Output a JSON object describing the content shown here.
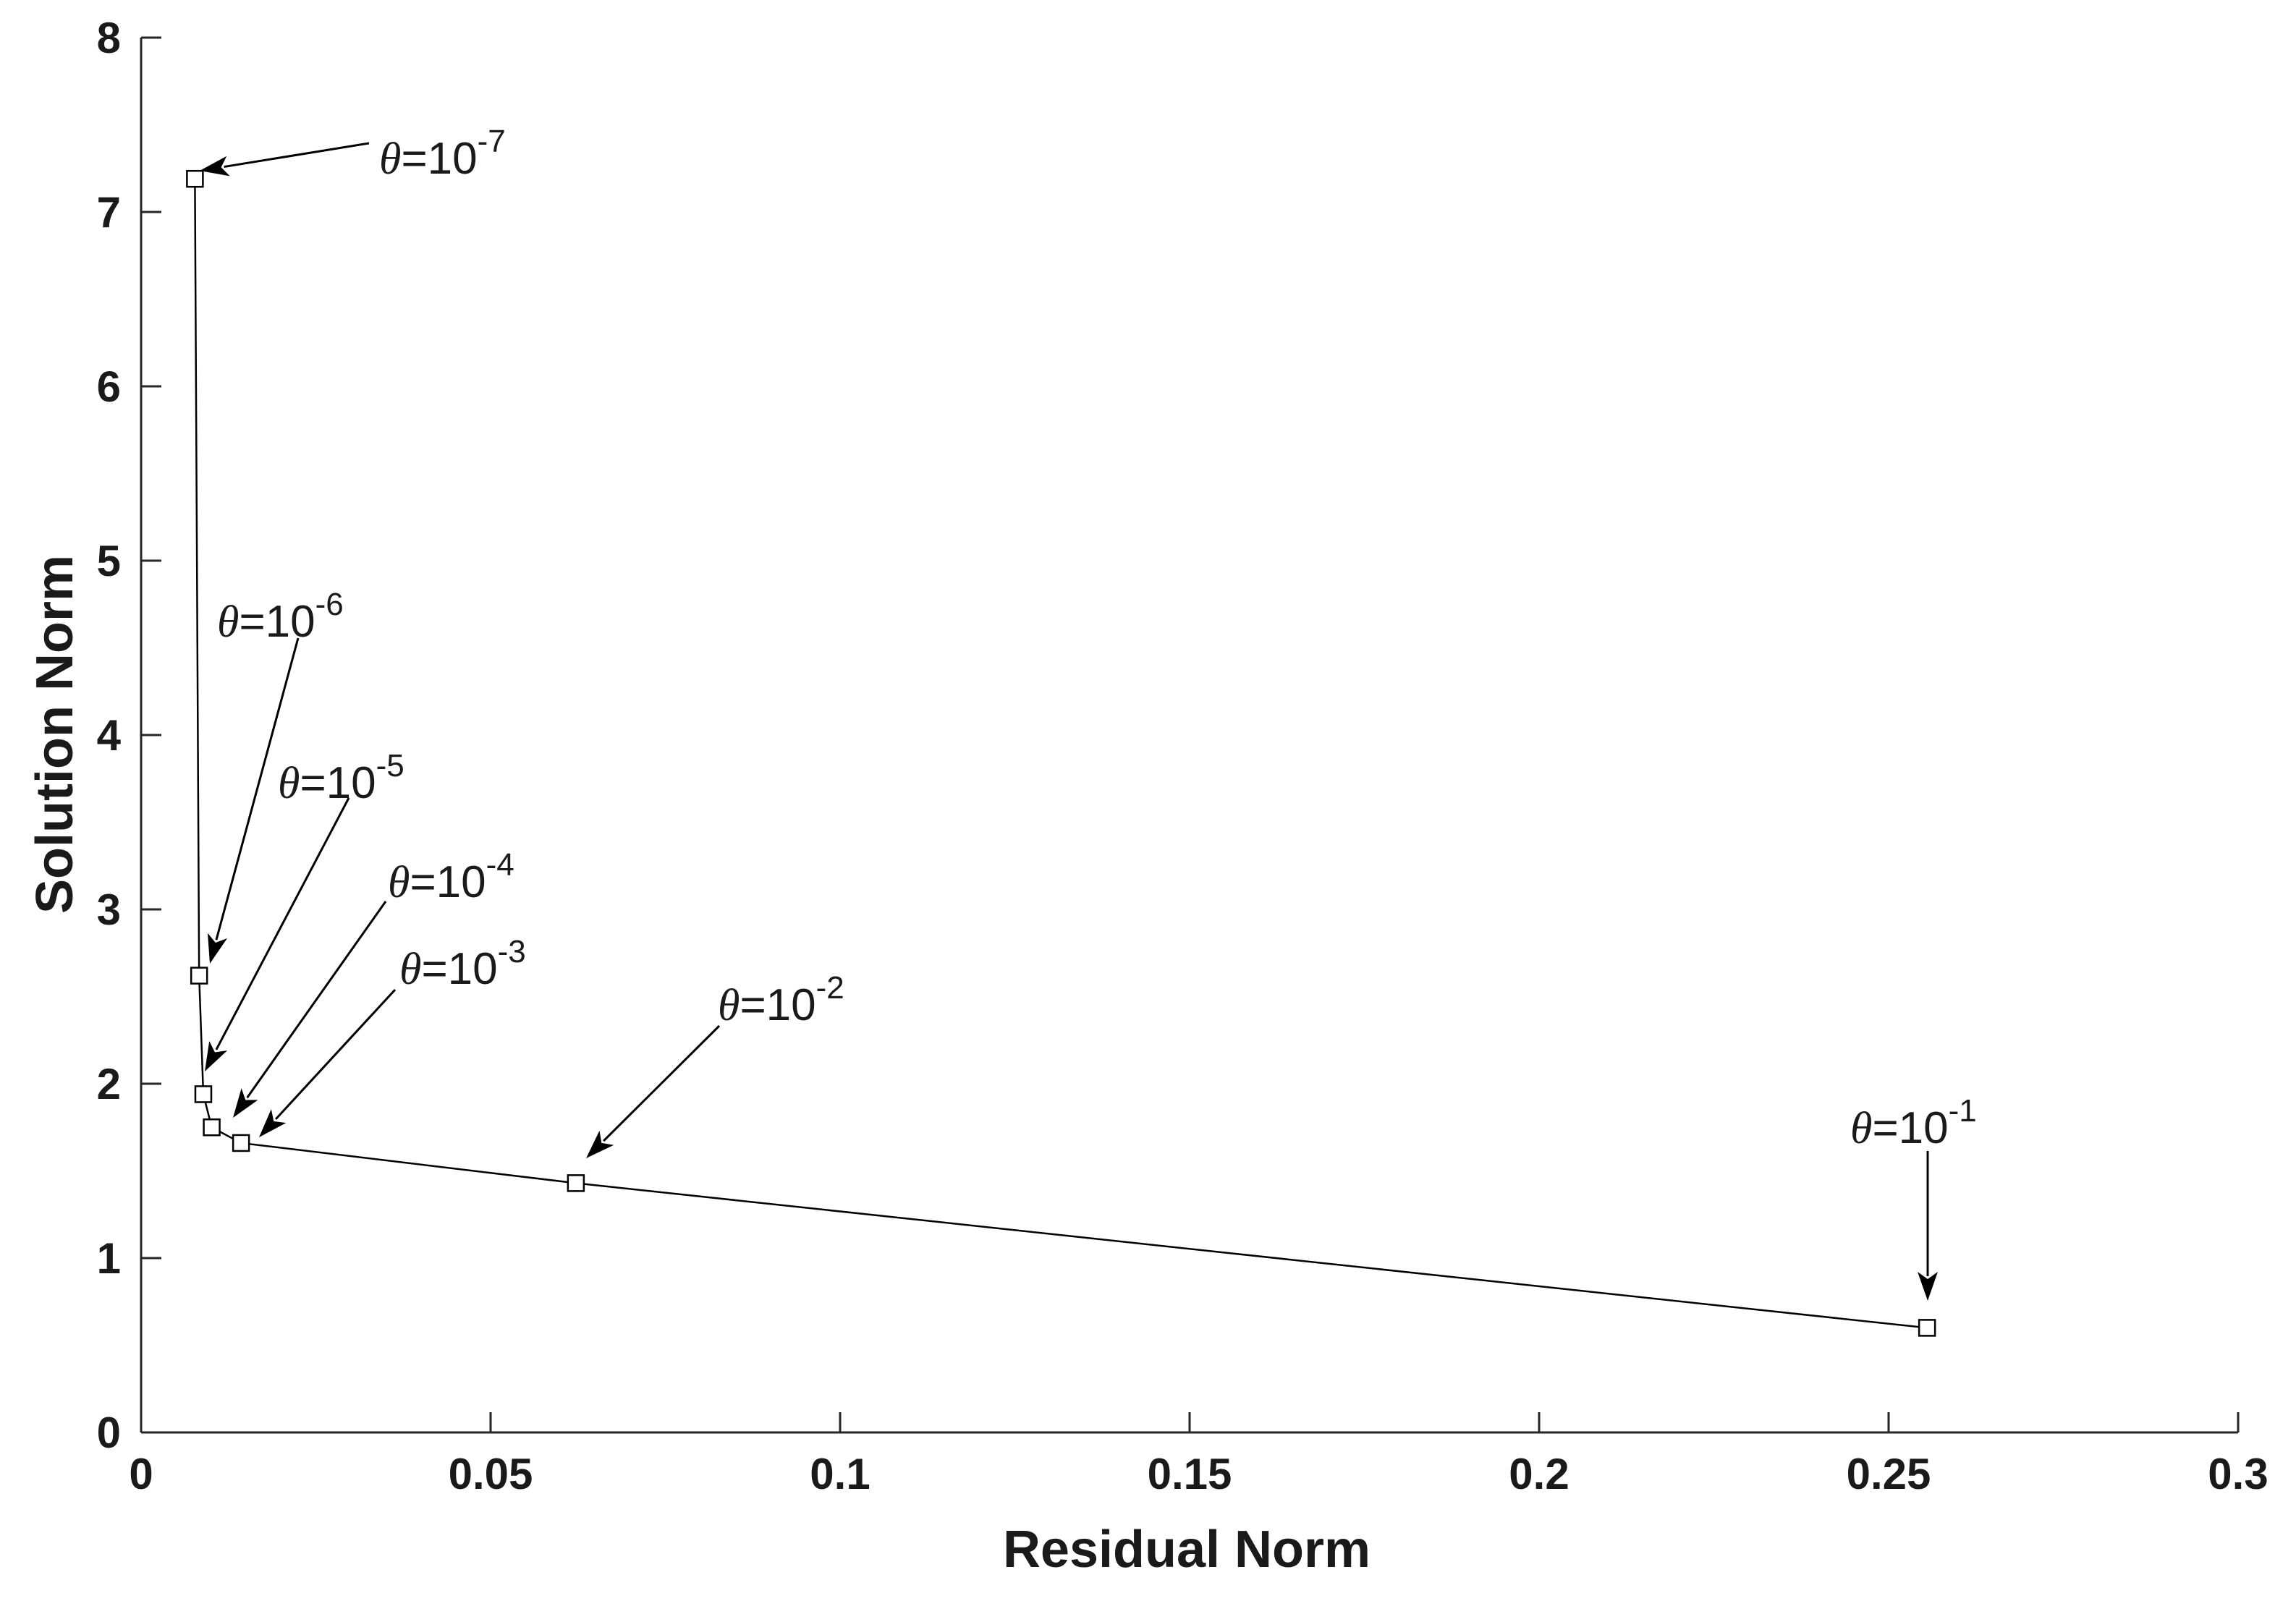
{
  "chart_data": {
    "type": "line",
    "title": "",
    "xlabel": "Residual Norm",
    "ylabel": "Solution Norm",
    "xlim": [
      0,
      0.3
    ],
    "ylim": [
      0,
      8
    ],
    "xticks": [
      0,
      0.05,
      0.1,
      0.15,
      0.2,
      0.25,
      0.3
    ],
    "xtick_labels": [
      "0",
      "0.05",
      "0.1",
      "0.15",
      "0.2",
      "0.25",
      "0.3"
    ],
    "yticks": [
      0,
      1,
      2,
      3,
      4,
      5,
      6,
      7,
      8
    ],
    "ytick_labels": [
      "0",
      "1",
      "2",
      "3",
      "4",
      "5",
      "6",
      "7",
      "8"
    ],
    "grid": false,
    "marker": "square",
    "series": [
      {
        "x": [
          0.0077,
          0.0083,
          0.0089,
          0.0101,
          0.0143,
          0.0622,
          0.2555
        ],
        "y": [
          7.19,
          2.62,
          1.94,
          1.75,
          1.66,
          1.43,
          0.6
        ]
      }
    ],
    "annotations": [
      {
        "prefix": "θ",
        "text": "=10",
        "exponent": "-7",
        "point_index": 0
      },
      {
        "prefix": "θ",
        "text": "=10",
        "exponent": "-6",
        "point_index": 1
      },
      {
        "prefix": "θ",
        "text": "=10",
        "exponent": "-5",
        "point_index": 2
      },
      {
        "prefix": "θ",
        "text": "=10",
        "exponent": "-4",
        "point_index": 3
      },
      {
        "prefix": "θ",
        "text": "=10",
        "exponent": "-3",
        "point_index": 4
      },
      {
        "prefix": "θ",
        "text": "=10",
        "exponent": "-2",
        "point_index": 5
      },
      {
        "prefix": "θ",
        "text": "=10",
        "exponent": "-1",
        "point_index": 6
      }
    ]
  }
}
